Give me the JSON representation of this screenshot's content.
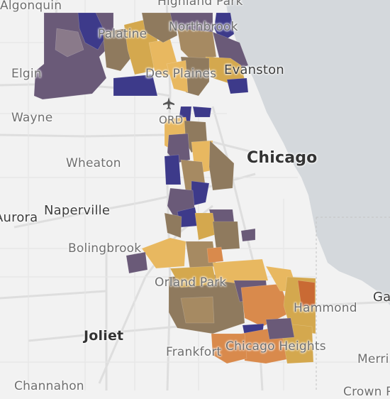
{
  "map": {
    "basemap_colors": {
      "land": "#f2f2f2",
      "water": "#d4d8dc",
      "roads": "#dcdcdc"
    },
    "choropleth_colors": [
      "#3d3a8a",
      "#6a5a78",
      "#8f7a5e",
      "#a68a62",
      "#d4a84e",
      "#e8b860",
      "#d98a4c",
      "#c96a34"
    ],
    "places": {
      "algonquin": "Algonquin",
      "highland_park": "Highland Park",
      "palatine": "Palatine",
      "northbrook": "Northbrook",
      "elgin": "Elgin",
      "des_plaines": "Des Plaines",
      "evanston": "Evanston",
      "wayne": "Wayne",
      "ord": "ORD",
      "chicago": "Chicago",
      "wheaton": "Wheaton",
      "aurora": "Aurora",
      "naperville": "Naperville",
      "bolingbrook": "Bolingbrook",
      "orland_park": "Orland Park",
      "gary": "Ga",
      "hammond": "Hammond",
      "joliet": "Joliet",
      "frankfort": "Frankfort",
      "chicago_heights": "Chicago Heights",
      "merrillville": "Merri",
      "channahon": "Channahon",
      "crown_point": "Crown P"
    },
    "airport_icon": "airplane-icon"
  }
}
